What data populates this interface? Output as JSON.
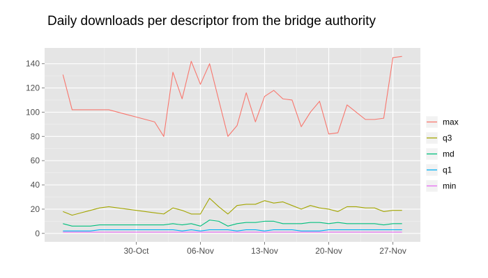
{
  "chart_data": {
    "type": "line",
    "title": "Daily downloads per descriptor from the bridge authority",
    "xlabel": "",
    "ylabel": "",
    "x": [
      "2012-10-22",
      "2012-10-23",
      "2012-10-24",
      "2012-10-25",
      "2012-10-26",
      "2012-10-27",
      "2012-10-28",
      "2012-10-29",
      "2012-10-30",
      "2012-10-31",
      "2012-11-01",
      "2012-11-02",
      "2012-11-03",
      "2012-11-04",
      "2012-11-05",
      "2012-11-06",
      "2012-11-07",
      "2012-11-08",
      "2012-11-09",
      "2012-11-10",
      "2012-11-11",
      "2012-11-12",
      "2012-11-13",
      "2012-11-14",
      "2012-11-15",
      "2012-11-16",
      "2012-11-17",
      "2012-11-18",
      "2012-11-19",
      "2012-11-20",
      "2012-11-21",
      "2012-11-22",
      "2012-11-23",
      "2012-11-24",
      "2012-11-25",
      "2012-11-26",
      "2012-11-27",
      "2012-11-28"
    ],
    "x_ticks": [
      {
        "date": "2012-10-30",
        "label": "30-Oct"
      },
      {
        "date": "2012-11-06",
        "label": "06-Nov"
      },
      {
        "date": "2012-11-13",
        "label": "13-Nov"
      },
      {
        "date": "2012-11-20",
        "label": "20-Nov"
      },
      {
        "date": "2012-11-27",
        "label": "27-Nov"
      }
    ],
    "x_range": [
      "2012-10-20",
      "2012-11-30"
    ],
    "ylim": [
      -7,
      153
    ],
    "y_ticks": [
      0,
      20,
      40,
      60,
      80,
      100,
      120,
      140
    ],
    "grid": true,
    "legend_position": "right",
    "series": [
      {
        "name": "max",
        "color": "#F8766D",
        "values": [
          131,
          102,
          102,
          102,
          102,
          102,
          100,
          98,
          96,
          94,
          92,
          80,
          133,
          111,
          142,
          123,
          140,
          110,
          80,
          89,
          116,
          92,
          113,
          118,
          111,
          110,
          88,
          100,
          109,
          82,
          83,
          106,
          100,
          94,
          94,
          95,
          145,
          146
        ]
      },
      {
        "name": "q3",
        "color": "#A3A500",
        "values": [
          18,
          15,
          17,
          19,
          21,
          22,
          21,
          20,
          19,
          18,
          17,
          16,
          21,
          19,
          16,
          16,
          29,
          22,
          16,
          23,
          24,
          24,
          27,
          25,
          26,
          23,
          20,
          23,
          21,
          20,
          18,
          22,
          22,
          21,
          21,
          18,
          19,
          19
        ]
      },
      {
        "name": "md",
        "color": "#00BF7D",
        "values": [
          8,
          6,
          6,
          6,
          7,
          7,
          7,
          7,
          7,
          7,
          7,
          7,
          8,
          7,
          8,
          6,
          11,
          10,
          6,
          8,
          9,
          9,
          10,
          10,
          8,
          8,
          8,
          9,
          9,
          8,
          9,
          8,
          8,
          8,
          8,
          7,
          8,
          8
        ]
      },
      {
        "name": "q1",
        "color": "#00B0F6",
        "values": [
          2,
          2,
          2,
          2,
          3,
          3,
          3,
          3,
          3,
          3,
          3,
          3,
          3,
          2,
          3,
          2,
          3,
          3,
          3,
          2,
          3,
          3,
          2,
          3,
          3,
          3,
          2,
          2,
          2,
          3,
          3,
          3,
          3,
          3,
          3,
          3,
          3,
          3
        ]
      },
      {
        "name": "min",
        "color": "#E76BF3",
        "values": [
          1,
          1,
          1,
          1,
          1,
          1,
          1,
          1,
          1,
          1,
          1,
          1,
          1,
          1,
          1,
          1,
          1,
          1,
          1,
          1,
          1,
          1,
          1,
          1,
          1,
          1,
          1,
          1,
          1,
          1,
          1,
          1,
          1,
          1,
          1,
          1,
          1,
          1
        ]
      }
    ]
  }
}
